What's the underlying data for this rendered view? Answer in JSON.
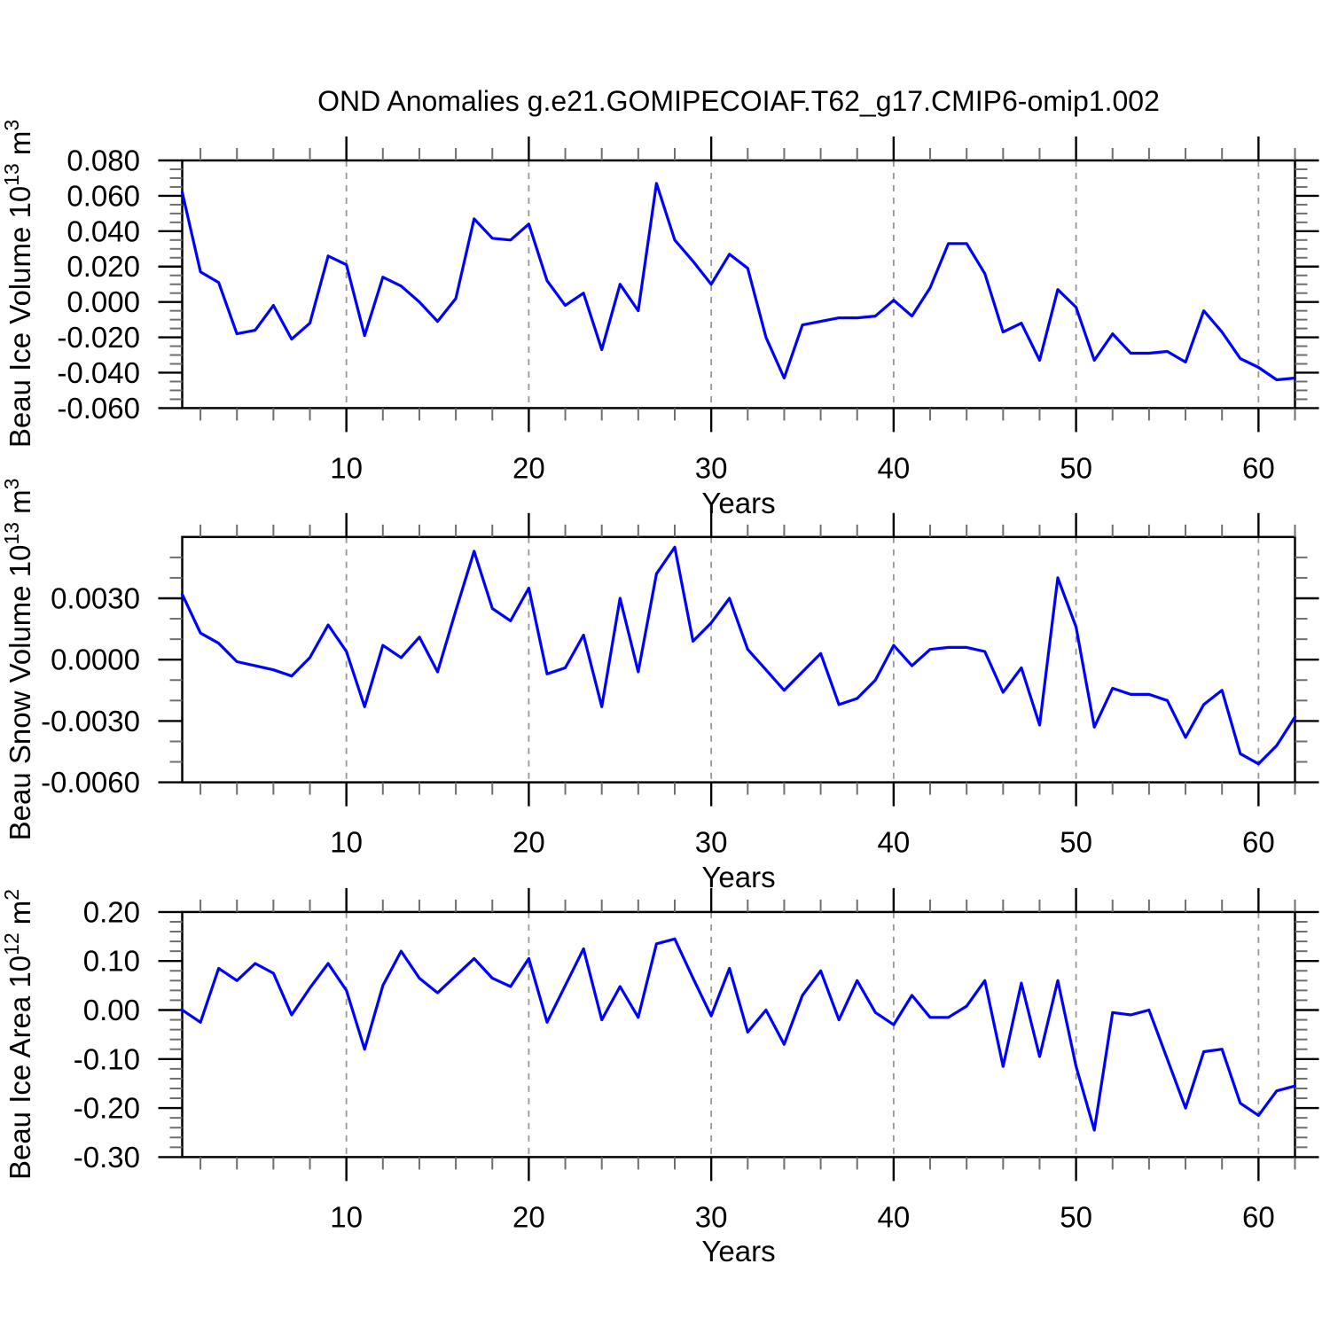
{
  "title": "OND Anomalies g.e21.GOMIPECOIAF.T62_g17.CMIP6-omip1.002",
  "colors": {
    "line": "#0000ff",
    "grid": "#979797",
    "axis": "#000000",
    "minor_tick": "#6e6e6e"
  },
  "years": [
    1,
    2,
    3,
    4,
    5,
    6,
    7,
    8,
    9,
    10,
    11,
    12,
    13,
    14,
    15,
    16,
    17,
    18,
    19,
    20,
    21,
    22,
    23,
    24,
    25,
    26,
    27,
    28,
    29,
    30,
    31,
    32,
    33,
    34,
    35,
    36,
    37,
    38,
    39,
    40,
    41,
    42,
    43,
    44,
    45,
    46,
    47,
    48,
    49,
    50,
    51,
    52,
    53,
    54,
    55,
    56,
    57,
    58,
    59,
    60,
    61,
    62
  ],
  "chart_data": [
    {
      "type": "line",
      "ylabel": {
        "base": "Beau Ice Volume 10",
        "exp": "13",
        "unit": "m",
        "unit_exp": "3"
      },
      "xlabel": "Years",
      "ylim": [
        -0.06,
        0.08
      ],
      "ytick_values": [
        0.08,
        0.06,
        0.04,
        0.02,
        0.0,
        -0.02,
        -0.04,
        -0.06
      ],
      "ytick_labels": [
        "0.080",
        "0.060",
        "0.040",
        "0.020",
        "0.000",
        "-0.020",
        "-0.040",
        "-0.060"
      ],
      "yminor_step": 0.005,
      "xtick_values": [
        10,
        20,
        30,
        40,
        50,
        60
      ],
      "xtick_labels": [
        "10",
        "20",
        "30",
        "40",
        "50",
        "60"
      ],
      "xminor_step": 2,
      "grid": "vertical-dashed",
      "values": [
        0.062,
        0.017,
        0.011,
        -0.018,
        -0.016,
        -0.002,
        -0.021,
        -0.012,
        0.026,
        0.021,
        -0.019,
        0.014,
        0.009,
        0.0,
        -0.011,
        0.002,
        0.047,
        0.036,
        0.035,
        0.044,
        0.012,
        -0.002,
        0.005,
        -0.027,
        0.01,
        -0.005,
        0.067,
        0.035,
        0.023,
        0.01,
        0.027,
        0.019,
        -0.02,
        -0.043,
        -0.013,
        -0.011,
        -0.009,
        -0.009,
        -0.008,
        0.001,
        -0.008,
        0.008,
        0.033,
        0.033,
        0.016,
        -0.017,
        -0.012,
        -0.033,
        0.007,
        -0.003,
        -0.033,
        -0.018,
        -0.029,
        -0.029,
        -0.028,
        -0.034,
        -0.005,
        -0.017,
        -0.032,
        -0.037,
        -0.044,
        -0.043
      ]
    },
    {
      "type": "line",
      "ylabel": {
        "base": "Beau Snow Volume 10",
        "exp": "13",
        "unit": "m",
        "unit_exp": "3"
      },
      "xlabel": "Years",
      "ylim": [
        -0.006,
        0.006
      ],
      "ytick_values": [
        0.003,
        0.0,
        -0.003,
        -0.006
      ],
      "ytick_labels": [
        "0.0030",
        "0.0000",
        "-0.0030",
        "-0.0060"
      ],
      "yminor_step": 0.001,
      "xtick_values": [
        10,
        20,
        30,
        40,
        50,
        60
      ],
      "xtick_labels": [
        "10",
        "20",
        "30",
        "40",
        "50",
        "60"
      ],
      "xminor_step": 2,
      "grid": "vertical-dashed",
      "values": [
        0.0032,
        0.0013,
        0.0008,
        -0.0001,
        -0.0003,
        -0.0005,
        -0.0008,
        0.0001,
        0.0017,
        0.0004,
        -0.0023,
        0.0007,
        0.0001,
        0.0011,
        -0.0006,
        0.0024,
        0.0053,
        0.0025,
        0.0019,
        0.0035,
        -0.0007,
        -0.0004,
        0.0012,
        -0.0023,
        0.003,
        -0.0006,
        0.0042,
        0.0055,
        0.0009,
        0.0018,
        0.003,
        0.0005,
        -0.0005,
        -0.0015,
        -0.0006,
        0.0003,
        -0.0022,
        -0.0019,
        -0.001,
        0.0007,
        -0.0003,
        0.0005,
        0.0006,
        0.0006,
        0.0004,
        -0.0016,
        -0.0004,
        -0.0032,
        0.004,
        0.0016,
        -0.0033,
        -0.0014,
        -0.0017,
        -0.0017,
        -0.002,
        -0.0038,
        -0.0022,
        -0.0015,
        -0.0046,
        -0.0051,
        -0.0042,
        -0.0028
      ]
    },
    {
      "type": "line",
      "ylabel": {
        "base": "Beau Ice Area 10",
        "exp": "12",
        "unit": "m",
        "unit_exp": "2"
      },
      "xlabel": "Years",
      "ylim": [
        -0.3,
        0.2
      ],
      "ytick_values": [
        0.2,
        0.1,
        0.0,
        -0.1,
        -0.2,
        -0.3
      ],
      "ytick_labels": [
        "0.20",
        "0.10",
        "0.00",
        "-0.10",
        "-0.20",
        "-0.30"
      ],
      "yminor_step": 0.02,
      "xtick_values": [
        10,
        20,
        30,
        40,
        50,
        60
      ],
      "xtick_labels": [
        "10",
        "20",
        "30",
        "40",
        "50",
        "60"
      ],
      "xminor_step": 2,
      "grid": "vertical-dashed",
      "values": [
        0.0,
        -0.025,
        0.085,
        0.06,
        0.095,
        0.075,
        -0.01,
        0.045,
        0.095,
        0.04,
        -0.08,
        0.05,
        0.12,
        0.065,
        0.035,
        0.07,
        0.105,
        0.065,
        0.048,
        0.105,
        -0.025,
        0.05,
        0.125,
        -0.02,
        0.048,
        -0.015,
        0.135,
        0.145,
        0.065,
        -0.012,
        0.085,
        -0.045,
        0.0,
        -0.07,
        0.03,
        0.08,
        -0.02,
        0.06,
        -0.005,
        -0.03,
        0.03,
        -0.015,
        -0.015,
        0.008,
        0.06,
        -0.115,
        0.055,
        -0.095,
        0.06,
        -0.115,
        -0.245,
        -0.005,
        -0.01,
        0.0,
        -0.1,
        -0.2,
        -0.085,
        -0.08,
        -0.19,
        -0.215,
        -0.165,
        -0.155
      ]
    }
  ]
}
